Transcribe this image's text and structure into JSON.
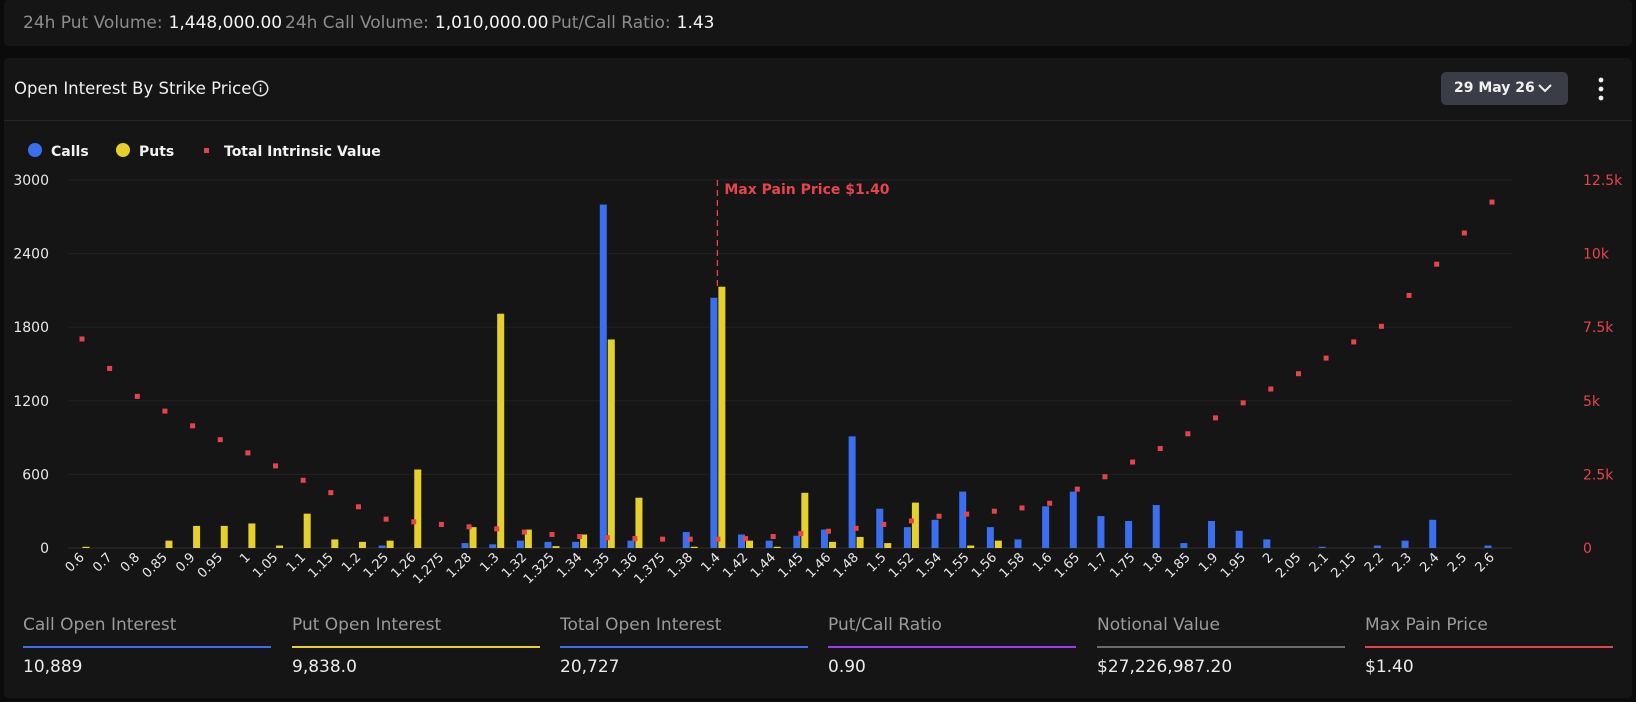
{
  "summary": {
    "put_volume_label": "24h Put Volume:",
    "put_volume": "1,448,000.00",
    "call_volume_label": "24h Call Volume:",
    "call_volume": "1,010,000.00",
    "ratio_label": "Put/Call Ratio:",
    "ratio": "1.43"
  },
  "card": {
    "title": "Open Interest By Strike Price",
    "date_selector": "29 May 26",
    "info_icon": "info-icon",
    "date_icon": "chevron-down-icon",
    "menu_icon": "more-vertical-icon"
  },
  "legend": {
    "calls": "Calls",
    "puts": "Puts",
    "intrinsic": "Total Intrinsic Value"
  },
  "colors": {
    "calls": "#3a6ff0",
    "puts": "#e6d02c",
    "intrinsic": "#e8434b",
    "ratio": "#9b3cf0",
    "notional": "#6b6b6b"
  },
  "chart_data": {
    "type": "bar",
    "categories": [
      "0.6",
      "0.7",
      "0.8",
      "0.85",
      "0.9",
      "0.95",
      "1",
      "1.05",
      "1.1",
      "1.15",
      "1.2",
      "1.25",
      "1.26",
      "1.275",
      "1.28",
      "1.3",
      "1.32",
      "1.325",
      "1.34",
      "1.35",
      "1.36",
      "1.375",
      "1.38",
      "1.4",
      "1.42",
      "1.44",
      "1.45",
      "1.46",
      "1.48",
      "1.5",
      "1.52",
      "1.54",
      "1.55",
      "1.56",
      "1.58",
      "1.6",
      "1.65",
      "1.7",
      "1.75",
      "1.8",
      "1.85",
      "1.9",
      "1.95",
      "2",
      "2.05",
      "2.1",
      "2.15",
      "2.2",
      "2.3",
      "2.4",
      "2.5",
      "2.6"
    ],
    "series": [
      {
        "name": "Calls",
        "axis": "left",
        "values": [
          0,
          0,
          0,
          0,
          0,
          0,
          0,
          0,
          0,
          0,
          0,
          20,
          0,
          0,
          40,
          30,
          60,
          50,
          50,
          2800,
          60,
          0,
          130,
          2040,
          110,
          60,
          100,
          150,
          910,
          320,
          170,
          230,
          460,
          170,
          70,
          340,
          460,
          260,
          220,
          350,
          40,
          220,
          140,
          70,
          0,
          10,
          0,
          20,
          60,
          230,
          0,
          20
        ]
      },
      {
        "name": "Puts",
        "axis": "left",
        "values": [
          10,
          0,
          0,
          60,
          180,
          180,
          200,
          20,
          280,
          70,
          50,
          60,
          640,
          0,
          170,
          1910,
          150,
          15,
          110,
          1700,
          410,
          0,
          10,
          2130,
          60,
          10,
          450,
          50,
          90,
          40,
          370,
          0,
          20,
          60,
          0,
          0,
          0,
          0,
          0,
          0,
          0,
          0,
          0,
          0,
          0,
          0,
          0,
          0,
          0,
          0,
          0,
          0
        ]
      },
      {
        "name": "Total Intrinsic Value",
        "axis": "right",
        "type": "scatter",
        "values": [
          7100,
          6100,
          5150,
          4650,
          4150,
          3680,
          3230,
          2790,
          2300,
          1880,
          1400,
          980,
          890,
          800,
          720,
          650,
          540,
          460,
          390,
          350,
          320,
          300,
          300,
          300,
          320,
          390,
          490,
          570,
          670,
          800,
          920,
          1080,
          1150,
          1250,
          1360,
          1520,
          2000,
          2420,
          2920,
          3380,
          3880,
          4420,
          4930,
          5400,
          5920,
          6450,
          7000,
          7530,
          8580,
          9640,
          10700,
          11750
        ]
      }
    ],
    "ylim": [
      0,
      3000
    ],
    "yticks": [
      "0",
      "600",
      "1200",
      "1800",
      "2400",
      "3000"
    ],
    "y2lim": [
      0,
      12500
    ],
    "y2ticks": [
      "0",
      "2.5k",
      "5k",
      "7.5k",
      "10k",
      "12.5k"
    ],
    "annotation": {
      "x": "1.4",
      "label": "Max Pain Price $1.40"
    },
    "grid": true,
    "legend_position": "top-left"
  },
  "metrics": [
    {
      "label": "Call Open Interest",
      "value": "10,889",
      "color": "#3a6ff0"
    },
    {
      "label": "Put Open Interest",
      "value": "9,838.0",
      "color": "#e6d02c"
    },
    {
      "label": "Total Open Interest",
      "value": "20,727",
      "color": "#3a6ff0"
    },
    {
      "label": "Put/Call Ratio",
      "value": "0.90",
      "color": "#9b3cf0"
    },
    {
      "label": "Notional Value",
      "value": "$27,226,987.20",
      "color": "#6b6b6b"
    },
    {
      "label": "Max Pain Price",
      "value": "$1.40",
      "color": "#e8434b"
    }
  ]
}
